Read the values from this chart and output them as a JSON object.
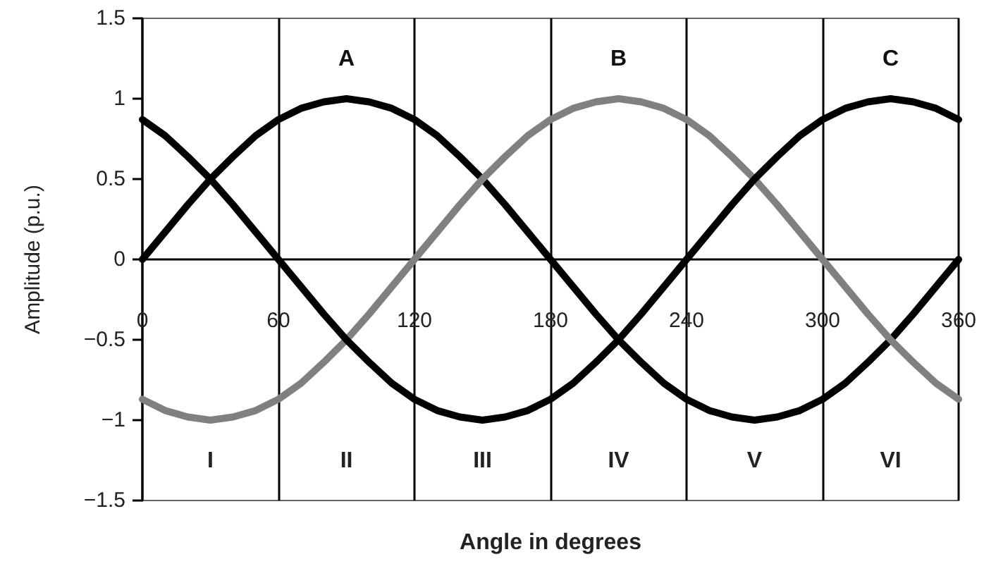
{
  "chart_data": {
    "type": "line",
    "xlabel": "Angle in degrees",
    "ylabel": "Amplitude (p.u.)",
    "x": [
      0,
      10,
      20,
      30,
      40,
      50,
      60,
      70,
      80,
      90,
      100,
      110,
      120,
      130,
      140,
      150,
      160,
      170,
      180,
      190,
      200,
      210,
      220,
      230,
      240,
      250,
      260,
      270,
      280,
      290,
      300,
      310,
      320,
      330,
      340,
      350,
      360
    ],
    "series": [
      {
        "name": "A",
        "color": "#000000",
        "values": [
          0,
          0.17,
          0.34,
          0.5,
          0.64,
          0.77,
          0.87,
          0.94,
          0.98,
          1,
          0.98,
          0.94,
          0.87,
          0.77,
          0.64,
          0.5,
          0.34,
          0.17,
          0,
          -0.17,
          -0.34,
          -0.5,
          -0.64,
          -0.77,
          -0.87,
          -0.94,
          -0.98,
          -1,
          -0.98,
          -0.94,
          -0.87,
          -0.77,
          -0.64,
          -0.5,
          -0.34,
          -0.17,
          0
        ]
      },
      {
        "name": "B",
        "color": "#808080",
        "values": [
          -0.87,
          -0.94,
          -0.98,
          -1,
          -0.98,
          -0.94,
          -0.87,
          -0.77,
          -0.64,
          -0.5,
          -0.34,
          -0.17,
          0,
          0.17,
          0.34,
          0.5,
          0.64,
          0.77,
          0.87,
          0.94,
          0.98,
          1,
          0.98,
          0.94,
          0.87,
          0.77,
          0.64,
          0.5,
          0.34,
          0.17,
          0,
          -0.17,
          -0.34,
          -0.5,
          -0.64,
          -0.77,
          -0.87
        ]
      },
      {
        "name": "C",
        "color": "#000000",
        "values": [
          0.87,
          0.77,
          0.64,
          0.5,
          0.34,
          0.17,
          0,
          -0.17,
          -0.34,
          -0.5,
          -0.64,
          -0.77,
          -0.87,
          -0.94,
          -0.98,
          -1,
          -0.98,
          -0.94,
          -0.87,
          -0.77,
          -0.64,
          -0.5,
          -0.34,
          -0.17,
          0,
          0.17,
          0.34,
          0.5,
          0.64,
          0.77,
          0.87,
          0.94,
          0.98,
          1,
          0.98,
          0.94,
          0.87
        ]
      }
    ],
    "xlim": [
      0,
      360
    ],
    "xticks": [
      0,
      60,
      120,
      180,
      240,
      300,
      360
    ],
    "ylim": [
      -1.5,
      1.5
    ],
    "yticks": [
      -1.5,
      -1,
      -0.5,
      0,
      0.5,
      1,
      1.5
    ],
    "annotations": [
      "I",
      "II",
      "III",
      "IV",
      "V",
      "VI"
    ],
    "grid": "x",
    "marker": "none",
    "line_style": "solid"
  }
}
